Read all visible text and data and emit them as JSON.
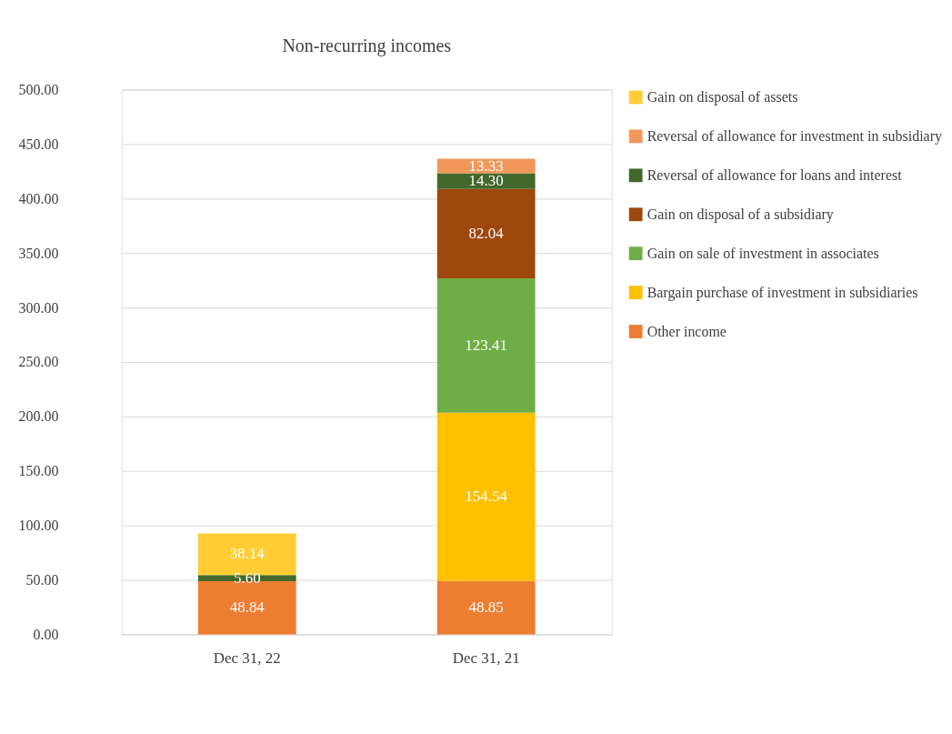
{
  "chart_data": {
    "type": "bar",
    "title": "Non-recurring incomes",
    "stacked": true,
    "grid": "y",
    "legend": "right",
    "categories": [
      "Dec 31, 22",
      "Dec 31, 21"
    ],
    "ylim": [
      0,
      500
    ],
    "yticks": [
      {
        "value": 0,
        "label": "0.00"
      },
      {
        "value": 50,
        "label": "50.00"
      },
      {
        "value": 100,
        "label": "100.00"
      },
      {
        "value": 150,
        "label": "150.00"
      },
      {
        "value": 200,
        "label": "200.00"
      },
      {
        "value": 250,
        "label": "250.00"
      },
      {
        "value": 300,
        "label": "300.00"
      },
      {
        "value": 350,
        "label": "350.00"
      },
      {
        "value": 400,
        "label": "400.00"
      },
      {
        "value": 450,
        "label": "450.00"
      },
      {
        "value": 500,
        "label": "500.00"
      }
    ],
    "series": [
      {
        "name": "Other income",
        "color": "#ed7d31",
        "values": [
          48.84,
          48.85
        ],
        "value_labels": [
          "48.84",
          "48.85"
        ]
      },
      {
        "name": "Bargain purchase of investment in subsidiaries",
        "color": "#ffc000",
        "values": [
          null,
          154.54
        ],
        "value_labels": [
          null,
          "154.54"
        ]
      },
      {
        "name": "Gain on sale of investment in associates",
        "color": "#70ad47",
        "values": [
          null,
          123.41
        ],
        "value_labels": [
          null,
          "123.41"
        ]
      },
      {
        "name": "Gain on disposal of a subsidiary",
        "color": "#9e480e",
        "values": [
          null,
          82.04
        ],
        "value_labels": [
          null,
          "82.04"
        ]
      },
      {
        "name": "Reversal of allowance for loans and interest",
        "color": "#43682b",
        "values": [
          5.6,
          14.3
        ],
        "value_labels": [
          "5.60",
          "14.30"
        ]
      },
      {
        "name": "Reversal of allowance for investment in subsidiary",
        "color": "#f1975a",
        "values": [
          null,
          13.33
        ],
        "value_labels": [
          null,
          "13.33"
        ]
      },
      {
        "name": "Gain on disposal of assets",
        "color": "#ffcd33",
        "values": [
          38.14,
          null
        ],
        "value_labels": [
          "38.14",
          null
        ]
      }
    ]
  }
}
